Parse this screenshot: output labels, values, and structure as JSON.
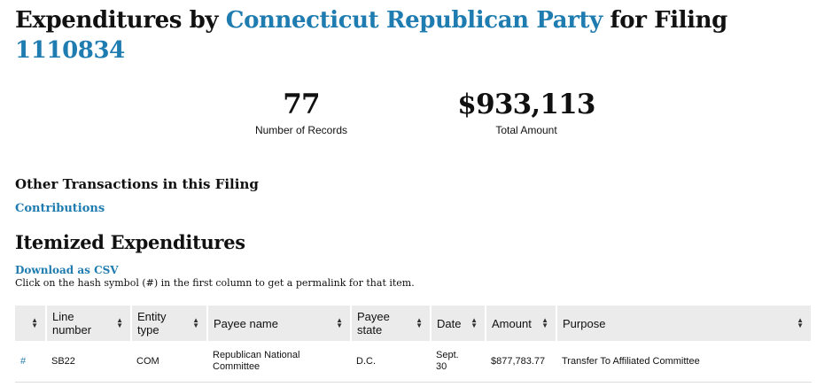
{
  "header": {
    "prefix": "Expenditures by ",
    "committee": "Connecticut Republican Party",
    "middle": " for Filing ",
    "filing_id": "1110834"
  },
  "stats": {
    "records_value": "77",
    "records_label": "Number of Records",
    "amount_value": "$933,113",
    "amount_label": "Total Amount"
  },
  "other": {
    "heading": "Other Transactions in this Filing",
    "contributions_link": "Contributions"
  },
  "itemized": {
    "heading": "Itemized Expenditures",
    "download_link": "Download as CSV",
    "hint": "Click on the hash symbol (#) in the first column to get a permalink for that item."
  },
  "table": {
    "columns": [
      "",
      "Line number",
      "Entity type",
      "Payee name",
      "Payee state",
      "Date",
      "Amount",
      "Purpose"
    ],
    "sort_icon": "sort-arrows-icon",
    "rows": [
      {
        "hash": "#",
        "line_number": "SB22",
        "entity_type": "COM",
        "payee_name": "Republican National Committee",
        "payee_state": "D.C.",
        "date": "Sept. 30",
        "amount": "$877,783.77",
        "purpose": "Transfer To Affiliated Committee"
      }
    ]
  }
}
